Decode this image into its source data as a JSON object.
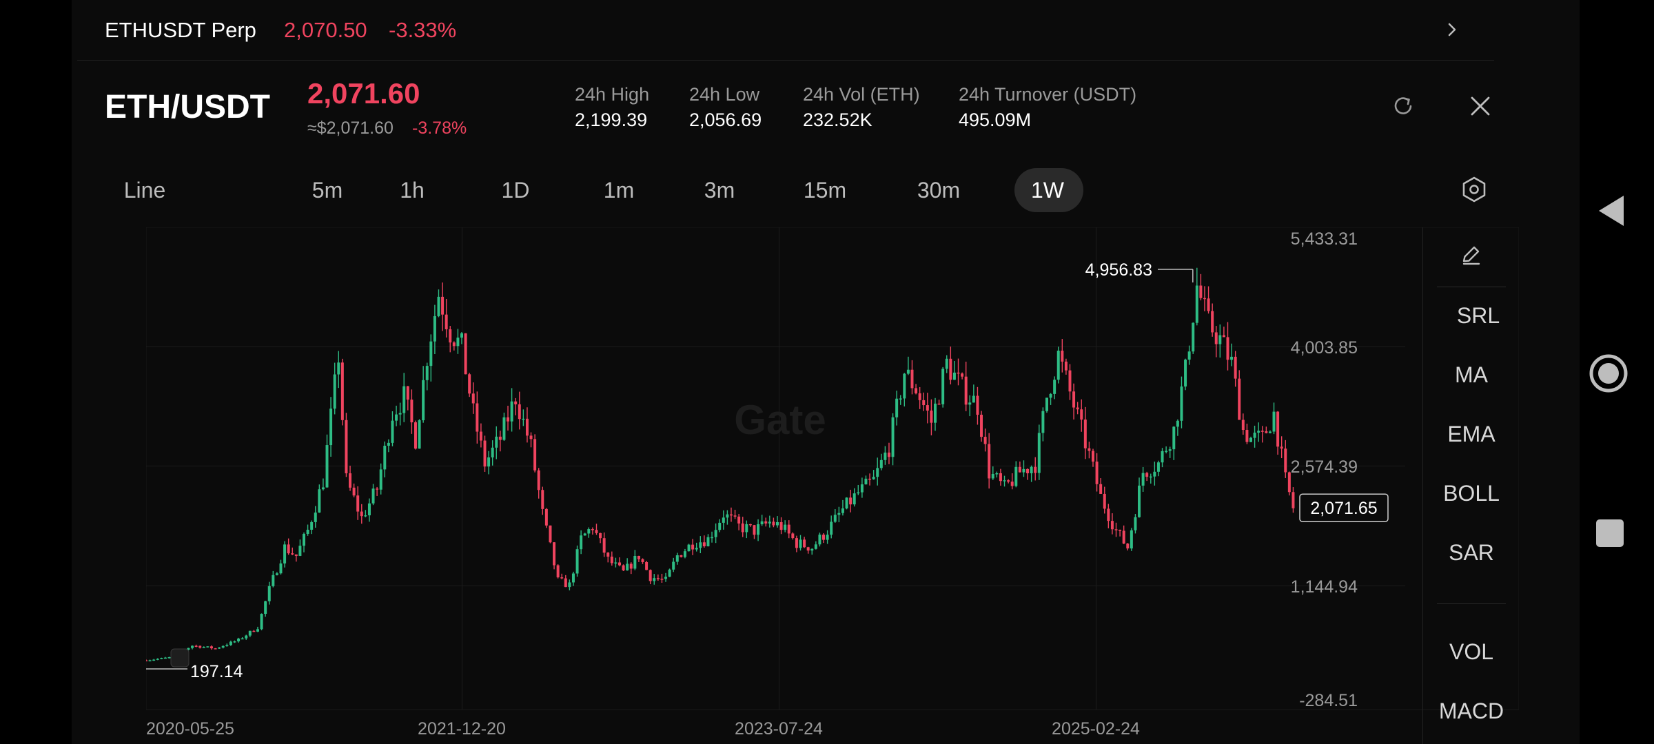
{
  "perp": {
    "name": "ETHUSDT Perp",
    "price": "2,070.50",
    "change": "-3.33%"
  },
  "pair": {
    "name": "ETH/USDT",
    "price": "2,071.60",
    "usd_price": "≈$2,071.60",
    "usd_change": "-3.78%"
  },
  "stats": [
    {
      "label": "24h   High",
      "value": "2,199.39"
    },
    {
      "label": "24h   Low",
      "value": "2,056.69"
    },
    {
      "label": "24h   Vol (ETH)",
      "value": "232.52K"
    },
    {
      "label": "24h   Turnover (USDT)",
      "value": "495.09M"
    }
  ],
  "tabs": [
    "Line",
    "5m",
    "1h",
    "1D",
    "1m",
    "3m",
    "15m",
    "30m",
    "1W"
  ],
  "active_tab": "1W",
  "side_tools": [
    "SRL",
    "MA",
    "EMA",
    "BOLL",
    "SAR",
    "VOL",
    "MACD"
  ],
  "icons": {
    "chevron": "chevron-right-icon",
    "refresh": "refresh-icon",
    "close": "close-icon",
    "settings": "hexagon-settings-icon",
    "edit": "pencil-icon",
    "back": "back-triangle-icon",
    "home": "home-circle-icon",
    "recent": "recent-square-icon"
  },
  "colors": {
    "up": "#2ebd85",
    "down": "#f0445f",
    "grid": "#1c1c1c"
  },
  "chart_data": {
    "type": "candlestick",
    "watermark": "Gate",
    "y_ticks": [
      5433.31,
      4003.85,
      2574.39,
      1144.94,
      -284.51
    ],
    "y_tick_labels": [
      "5,433.31",
      "4,003.85",
      "2,574.39",
      "1,144.94",
      "-284.51"
    ],
    "ylim": [
      -284.51,
      5433.31
    ],
    "x_tick_labels": [
      "2020-05-25",
      "2021-12-20",
      "2023-07-24",
      "2025-02-24"
    ],
    "x_tick_dates": [
      "2020-05-25",
      "2021-12-20",
      "2023-07-24",
      "2025-02-24"
    ],
    "max_label": "4,956.83",
    "min_label": "197.14",
    "last_price_label": "2,071.65",
    "last_price": 2071.65,
    "interval": "1 week",
    "closes": [
      [
        "2020-05-25",
        205
      ],
      [
        "2020-07-06",
        240
      ],
      [
        "2020-08-17",
        390
      ],
      [
        "2020-09-28",
        355
      ],
      [
        "2020-11-09",
        460
      ],
      [
        "2020-12-14",
        620
      ],
      [
        "2021-01-04",
        1100
      ],
      [
        "2021-02-01",
        1600
      ],
      [
        "2021-02-22",
        1500
      ],
      [
        "2021-03-15",
        1800
      ],
      [
        "2021-04-12",
        2400
      ],
      [
        "2021-05-10",
        3900
      ],
      [
        "2021-05-24",
        2400
      ],
      [
        "2021-06-21",
        1950
      ],
      [
        "2021-07-19",
        2300
      ],
      [
        "2021-08-16",
        3200
      ],
      [
        "2021-09-06",
        3400
      ],
      [
        "2021-09-27",
        2900
      ],
      [
        "2021-10-18",
        3900
      ],
      [
        "2021-11-08",
        4700
      ],
      [
        "2021-11-29",
        4200
      ],
      [
        "2021-12-20",
        4000
      ],
      [
        "2022-01-10",
        3200
      ],
      [
        "2022-01-31",
        2600
      ],
      [
        "2022-02-28",
        2900
      ],
      [
        "2022-03-28",
        3400
      ],
      [
        "2022-04-25",
        2800
      ],
      [
        "2022-05-16",
        2000
      ],
      [
        "2022-06-13",
        1200
      ],
      [
        "2022-07-04",
        1150
      ],
      [
        "2022-07-25",
        1700
      ],
      [
        "2022-08-15",
        1850
      ],
      [
        "2022-09-12",
        1450
      ],
      [
        "2022-10-10",
        1300
      ],
      [
        "2022-11-07",
        1500
      ],
      [
        "2022-11-28",
        1250
      ],
      [
        "2022-12-26",
        1200
      ],
      [
        "2023-01-16",
        1500
      ],
      [
        "2023-02-13",
        1650
      ],
      [
        "2023-03-13",
        1700
      ],
      [
        "2023-04-10",
        2000
      ],
      [
        "2023-05-08",
        1850
      ],
      [
        "2023-06-05",
        1800
      ],
      [
        "2023-07-03",
        1900
      ],
      [
        "2023-07-24",
        1850
      ],
      [
        "2023-08-21",
        1650
      ],
      [
        "2023-09-18",
        1600
      ],
      [
        "2023-10-16",
        1800
      ],
      [
        "2023-11-13",
        2050
      ],
      [
        "2023-12-11",
        2250
      ],
      [
        "2024-01-08",
        2400
      ],
      [
        "2024-02-05",
        2800
      ],
      [
        "2024-03-04",
        3700
      ],
      [
        "2024-03-25",
        3500
      ],
      [
        "2024-04-22",
        3100
      ],
      [
        "2024-05-20",
        3800
      ],
      [
        "2024-06-17",
        3500
      ],
      [
        "2024-07-15",
        3300
      ],
      [
        "2024-08-05",
        2500
      ],
      [
        "2024-09-02",
        2300
      ],
      [
        "2024-09-30",
        2500
      ],
      [
        "2024-10-28",
        2600
      ],
      [
        "2024-11-18",
        3400
      ],
      [
        "2024-12-09",
        3900
      ],
      [
        "2025-01-06",
        3300
      ],
      [
        "2025-02-03",
        2700
      ],
      [
        "2025-02-24",
        2200
      ],
      [
        "2025-03-24",
        1800
      ],
      [
        "2025-04-14",
        1600
      ],
      [
        "2025-05-12",
        2500
      ],
      [
        "2025-06-09",
        2600
      ],
      [
        "2025-07-07",
        3000
      ],
      [
        "2025-07-28",
        3700
      ],
      [
        "2025-08-18",
        4800
      ],
      [
        "2025-09-08",
        4300
      ],
      [
        "2025-09-29",
        4100
      ],
      [
        "2025-10-20",
        3800
      ],
      [
        "2025-11-10",
        3000
      ],
      [
        "2025-11-24",
        2900
      ],
      [
        "2025-12-15",
        2900
      ],
      [
        "2026-01-05",
        3200
      ],
      [
        "2026-01-26",
        2400
      ],
      [
        "2026-02-09",
        2071.65
      ]
    ]
  }
}
